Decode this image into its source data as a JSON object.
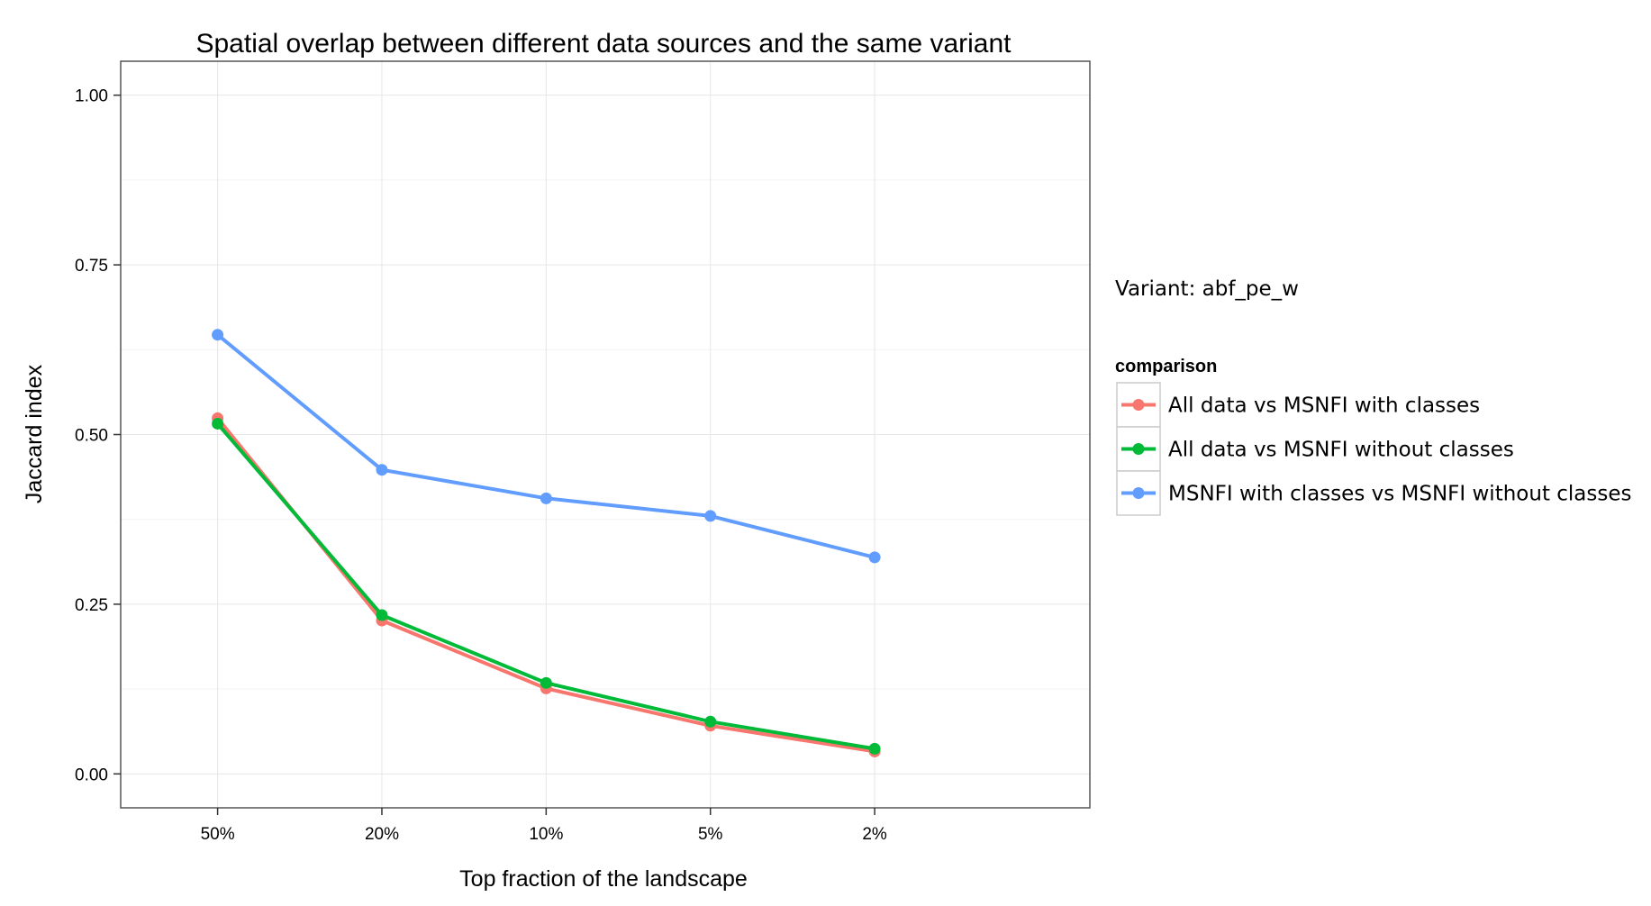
{
  "chart_data": {
    "type": "line",
    "title": "Spatial overlap between different data sources and the same variant",
    "xlabel": "Top fraction of the landscape",
    "ylabel": "Jaccard index",
    "categories": [
      "50%",
      "20%",
      "10%",
      "5%",
      "2%"
    ],
    "ylim": [
      -0.05,
      1.05
    ],
    "yticks": [
      0.0,
      0.25,
      0.5,
      0.75,
      1.0
    ],
    "ytick_labels": [
      "0.00",
      "0.25",
      "0.50",
      "0.75",
      "1.00"
    ],
    "grid": true,
    "annotation": "Variant: abf_pe_w",
    "legend": {
      "title": "comparison",
      "position": "right"
    },
    "series": [
      {
        "name": "All data vs MSNFI with classes",
        "color": "#F8766D",
        "values": [
          0.524,
          0.226,
          0.126,
          0.071,
          0.033
        ]
      },
      {
        "name": "All data vs MSNFI without classes",
        "color": "#00BA38",
        "values": [
          0.516,
          0.234,
          0.134,
          0.077,
          0.037
        ]
      },
      {
        "name": "MSNFI with classes vs MSNFI without classes",
        "color": "#619CFF",
        "values": [
          0.647,
          0.448,
          0.406,
          0.38,
          0.319
        ]
      }
    ]
  }
}
